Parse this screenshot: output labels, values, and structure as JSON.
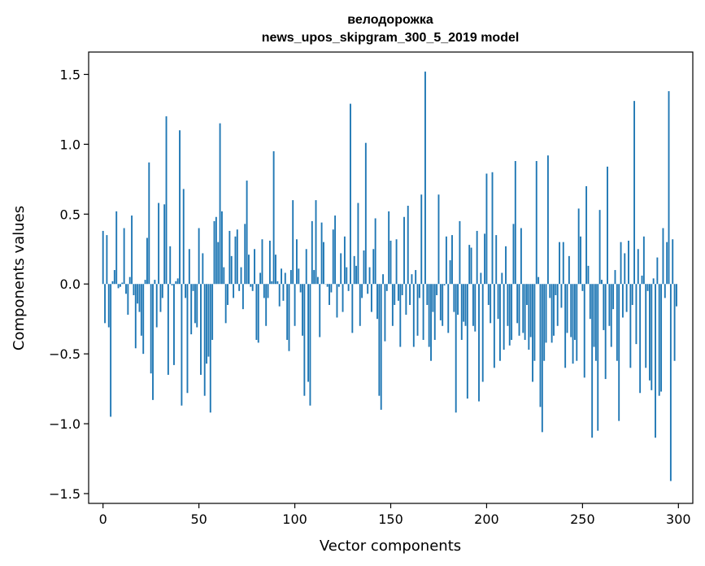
{
  "chart_data": {
    "type": "bar",
    "title": "велодорожка",
    "subtitle": "news_upos_skipgram_300_5_2019 model",
    "xlabel": "Vector components",
    "ylabel": "Components values",
    "xlim": [
      -7.5,
      307.5
    ],
    "ylim": [
      -1.57,
      1.66
    ],
    "xticks": [
      0,
      50,
      100,
      150,
      200,
      250,
      300
    ],
    "xtick_labels": [
      "0",
      "50",
      "100",
      "150",
      "200",
      "250",
      "300"
    ],
    "yticks": [
      -1.5,
      -1.0,
      -0.5,
      0.0,
      0.5,
      1.0,
      1.5
    ],
    "ytick_labels": [
      "−1.5",
      "−1.0",
      "−0.5",
      "0.0",
      "0.5",
      "1.0",
      "1.5"
    ],
    "grid": false,
    "bar_color": "#1f77b4",
    "x": "0..299 (integer component index)",
    "values": [
      0.38,
      -0.28,
      0.35,
      -0.31,
      -0.95,
      0.02,
      0.1,
      0.52,
      -0.03,
      -0.02,
      0.01,
      0.4,
      -0.07,
      -0.22,
      0.05,
      0.49,
      -0.08,
      -0.46,
      -0.14,
      -0.2,
      -0.37,
      -0.5,
      0.03,
      0.33,
      0.87,
      -0.64,
      -0.83,
      0.03,
      -0.31,
      0.58,
      -0.2,
      -0.1,
      0.57,
      1.2,
      -0.65,
      0.27,
      -0.01,
      -0.58,
      0.02,
      0.04,
      1.1,
      -0.87,
      0.68,
      -0.1,
      -0.78,
      0.25,
      -0.36,
      -0.05,
      -0.28,
      -0.31,
      0.4,
      -0.65,
      0.22,
      -0.8,
      -0.57,
      -0.52,
      -0.92,
      -0.4,
      0.45,
      0.48,
      0.3,
      1.15,
      0.52,
      0.12,
      -0.28,
      -0.15,
      0.38,
      0.2,
      -0.1,
      0.34,
      0.39,
      -0.05,
      0.12,
      -0.18,
      0.43,
      0.74,
      0.21,
      -0.02,
      -0.05,
      0.25,
      -0.4,
      -0.42,
      0.08,
      0.32,
      -0.1,
      -0.3,
      -0.1,
      0.31,
      0.02,
      0.95,
      0.21,
      0.02,
      -0.16,
      0.11,
      -0.12,
      0.08,
      -0.4,
      -0.48,
      0.1,
      0.6,
      -0.3,
      0.32,
      0.11,
      -0.06,
      -0.37,
      -0.8,
      0.25,
      -0.7,
      -0.87,
      0.45,
      0.1,
      0.6,
      0.05,
      -0.38,
      0.44,
      0.3,
      0.0,
      -0.02,
      -0.15,
      -0.06,
      0.39,
      0.49,
      -0.24,
      -0.02,
      0.22,
      -0.2,
      0.34,
      0.12,
      -0.05,
      1.29,
      -0.35,
      0.2,
      0.13,
      0.58,
      -0.3,
      -0.1,
      0.24,
      1.01,
      -0.07,
      0.12,
      -0.2,
      0.25,
      0.47,
      -0.25,
      -0.8,
      -0.9,
      0.07,
      -0.41,
      -0.05,
      0.52,
      0.31,
      -0.3,
      -0.15,
      0.32,
      -0.12,
      -0.45,
      -0.08,
      0.48,
      -0.22,
      0.56,
      -0.15,
      0.07,
      -0.45,
      0.1,
      -0.37,
      -0.1,
      0.64,
      -0.4,
      1.52,
      -0.15,
      -0.45,
      -0.55,
      -0.2,
      -0.4,
      -0.08,
      0.64,
      -0.26,
      -0.3,
      -0.01,
      0.34,
      -0.35,
      0.17,
      0.35,
      -0.2,
      -0.92,
      -0.22,
      0.45,
      -0.4,
      -0.27,
      -0.3,
      -0.82,
      0.28,
      0.26,
      -0.3,
      -0.34,
      0.38,
      -0.84,
      0.08,
      -0.7,
      0.36,
      0.79,
      -0.15,
      -0.28,
      0.8,
      -0.6,
      0.35,
      -0.25,
      -0.55,
      0.08,
      -0.47,
      0.27,
      -0.3,
      -0.44,
      -0.4,
      0.43,
      0.88,
      -0.28,
      -0.37,
      0.4,
      -0.35,
      -0.4,
      -0.15,
      -0.47,
      -0.38,
      -0.7,
      -0.55,
      0.88,
      0.05,
      -0.88,
      -1.06,
      -0.55,
      -0.42,
      0.92,
      -0.1,
      -0.42,
      -0.37,
      -0.08,
      -0.3,
      0.3,
      -0.17,
      0.3,
      -0.6,
      -0.35,
      0.2,
      -0.38,
      -0.57,
      -0.4,
      -0.55,
      0.54,
      0.34,
      -0.05,
      -0.67,
      0.7,
      0.13,
      -0.25,
      -1.1,
      -0.45,
      -0.55,
      -1.05,
      0.53,
      0.03,
      -0.33,
      -0.68,
      0.84,
      -0.3,
      -0.45,
      -0.18,
      0.1,
      -0.55,
      -0.98,
      0.3,
      -0.24,
      0.22,
      -0.2,
      0.31,
      -0.6,
      -0.15,
      1.31,
      -0.43,
      0.25,
      -0.78,
      0.06,
      0.34,
      -0.6,
      -0.05,
      -0.69,
      -0.76,
      0.04,
      -1.1,
      0.19,
      -0.8,
      -0.77,
      0.4,
      -0.1,
      0.3,
      1.38,
      -1.41,
      0.32,
      -0.55,
      -0.16
    ]
  }
}
